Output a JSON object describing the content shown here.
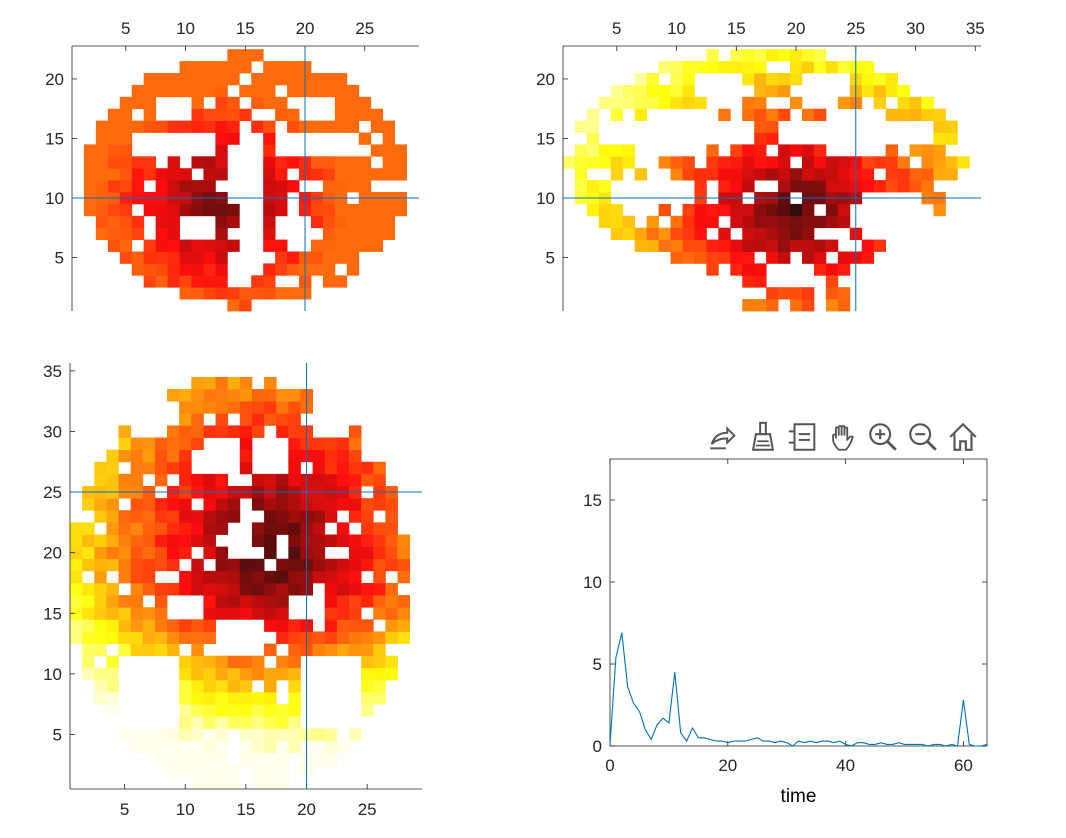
{
  "colors": {
    "axis": "#262626",
    "crosshair": "#0072BD",
    "series": "#0072BD",
    "colormap": "hot"
  },
  "panels": {
    "coronal": {
      "xticks": [
        "5",
        "10",
        "15",
        "20",
        "25"
      ],
      "yticks": [
        "20",
        "15",
        "10",
        "5"
      ],
      "crosshair": {
        "x": 20,
        "y": 10
      }
    },
    "sagittal": {
      "xticks": [
        "5",
        "10",
        "15",
        "20",
        "25",
        "30",
        "35"
      ],
      "yticks": [
        "20",
        "15",
        "10",
        "5"
      ],
      "crosshair": {
        "x": 25,
        "y": 10
      }
    },
    "axial": {
      "xticks": [
        "5",
        "10",
        "15",
        "20",
        "25"
      ],
      "yticks": [
        "35",
        "30",
        "25",
        "20",
        "15",
        "10",
        "5"
      ],
      "crosshair": {
        "x": 20,
        "y": 25
      }
    }
  },
  "toolbar": {
    "icons": [
      "export-icon",
      "brush-icon",
      "legend-icon",
      "pan-hand-icon",
      "zoom-in-icon",
      "zoom-out-icon",
      "home-icon"
    ]
  },
  "chart_data": {
    "type": "line",
    "xlabel": "time",
    "xlim": [
      0,
      64
    ],
    "ylim": [
      0,
      17.5
    ],
    "xticks": [
      "0",
      "20",
      "40",
      "60"
    ],
    "yticks": [
      "0",
      "5",
      "10",
      "15"
    ],
    "series": [
      {
        "x": [
          0,
          1,
          2,
          3,
          4,
          5,
          6,
          7,
          8,
          9,
          10,
          11,
          12,
          13,
          14,
          15,
          16,
          17,
          18,
          19,
          20,
          21,
          22,
          23,
          24,
          25,
          26,
          27,
          28,
          29,
          30,
          31,
          32,
          33,
          34,
          35,
          36,
          37,
          38,
          39,
          40,
          41,
          42,
          43,
          44,
          45,
          46,
          47,
          48,
          49,
          50,
          51,
          52,
          53,
          54,
          55,
          56,
          57,
          58,
          59,
          60,
          61,
          62,
          63,
          64
        ],
        "y": [
          0.1,
          5.4,
          6.9,
          3.6,
          2.6,
          2.1,
          1.0,
          0.4,
          1.3,
          1.7,
          1.4,
          4.5,
          0.8,
          0.3,
          1.1,
          0.5,
          0.5,
          0.4,
          0.3,
          0.3,
          0.2,
          0.3,
          0.3,
          0.3,
          0.4,
          0.5,
          0.3,
          0.3,
          0.2,
          0.3,
          0.2,
          0.0,
          0.3,
          0.2,
          0.3,
          0.2,
          0.3,
          0.3,
          0.2,
          0.3,
          0.1,
          0.0,
          0.2,
          0.2,
          0.1,
          0.1,
          0.2,
          0.1,
          0.1,
          0.2,
          0.1,
          0.1,
          0.1,
          0.1,
          0.0,
          0.1,
          0.1,
          0.0,
          0.1,
          0.0,
          2.8,
          0.1,
          0.0,
          0.0,
          0.1
        ]
      }
    ]
  }
}
